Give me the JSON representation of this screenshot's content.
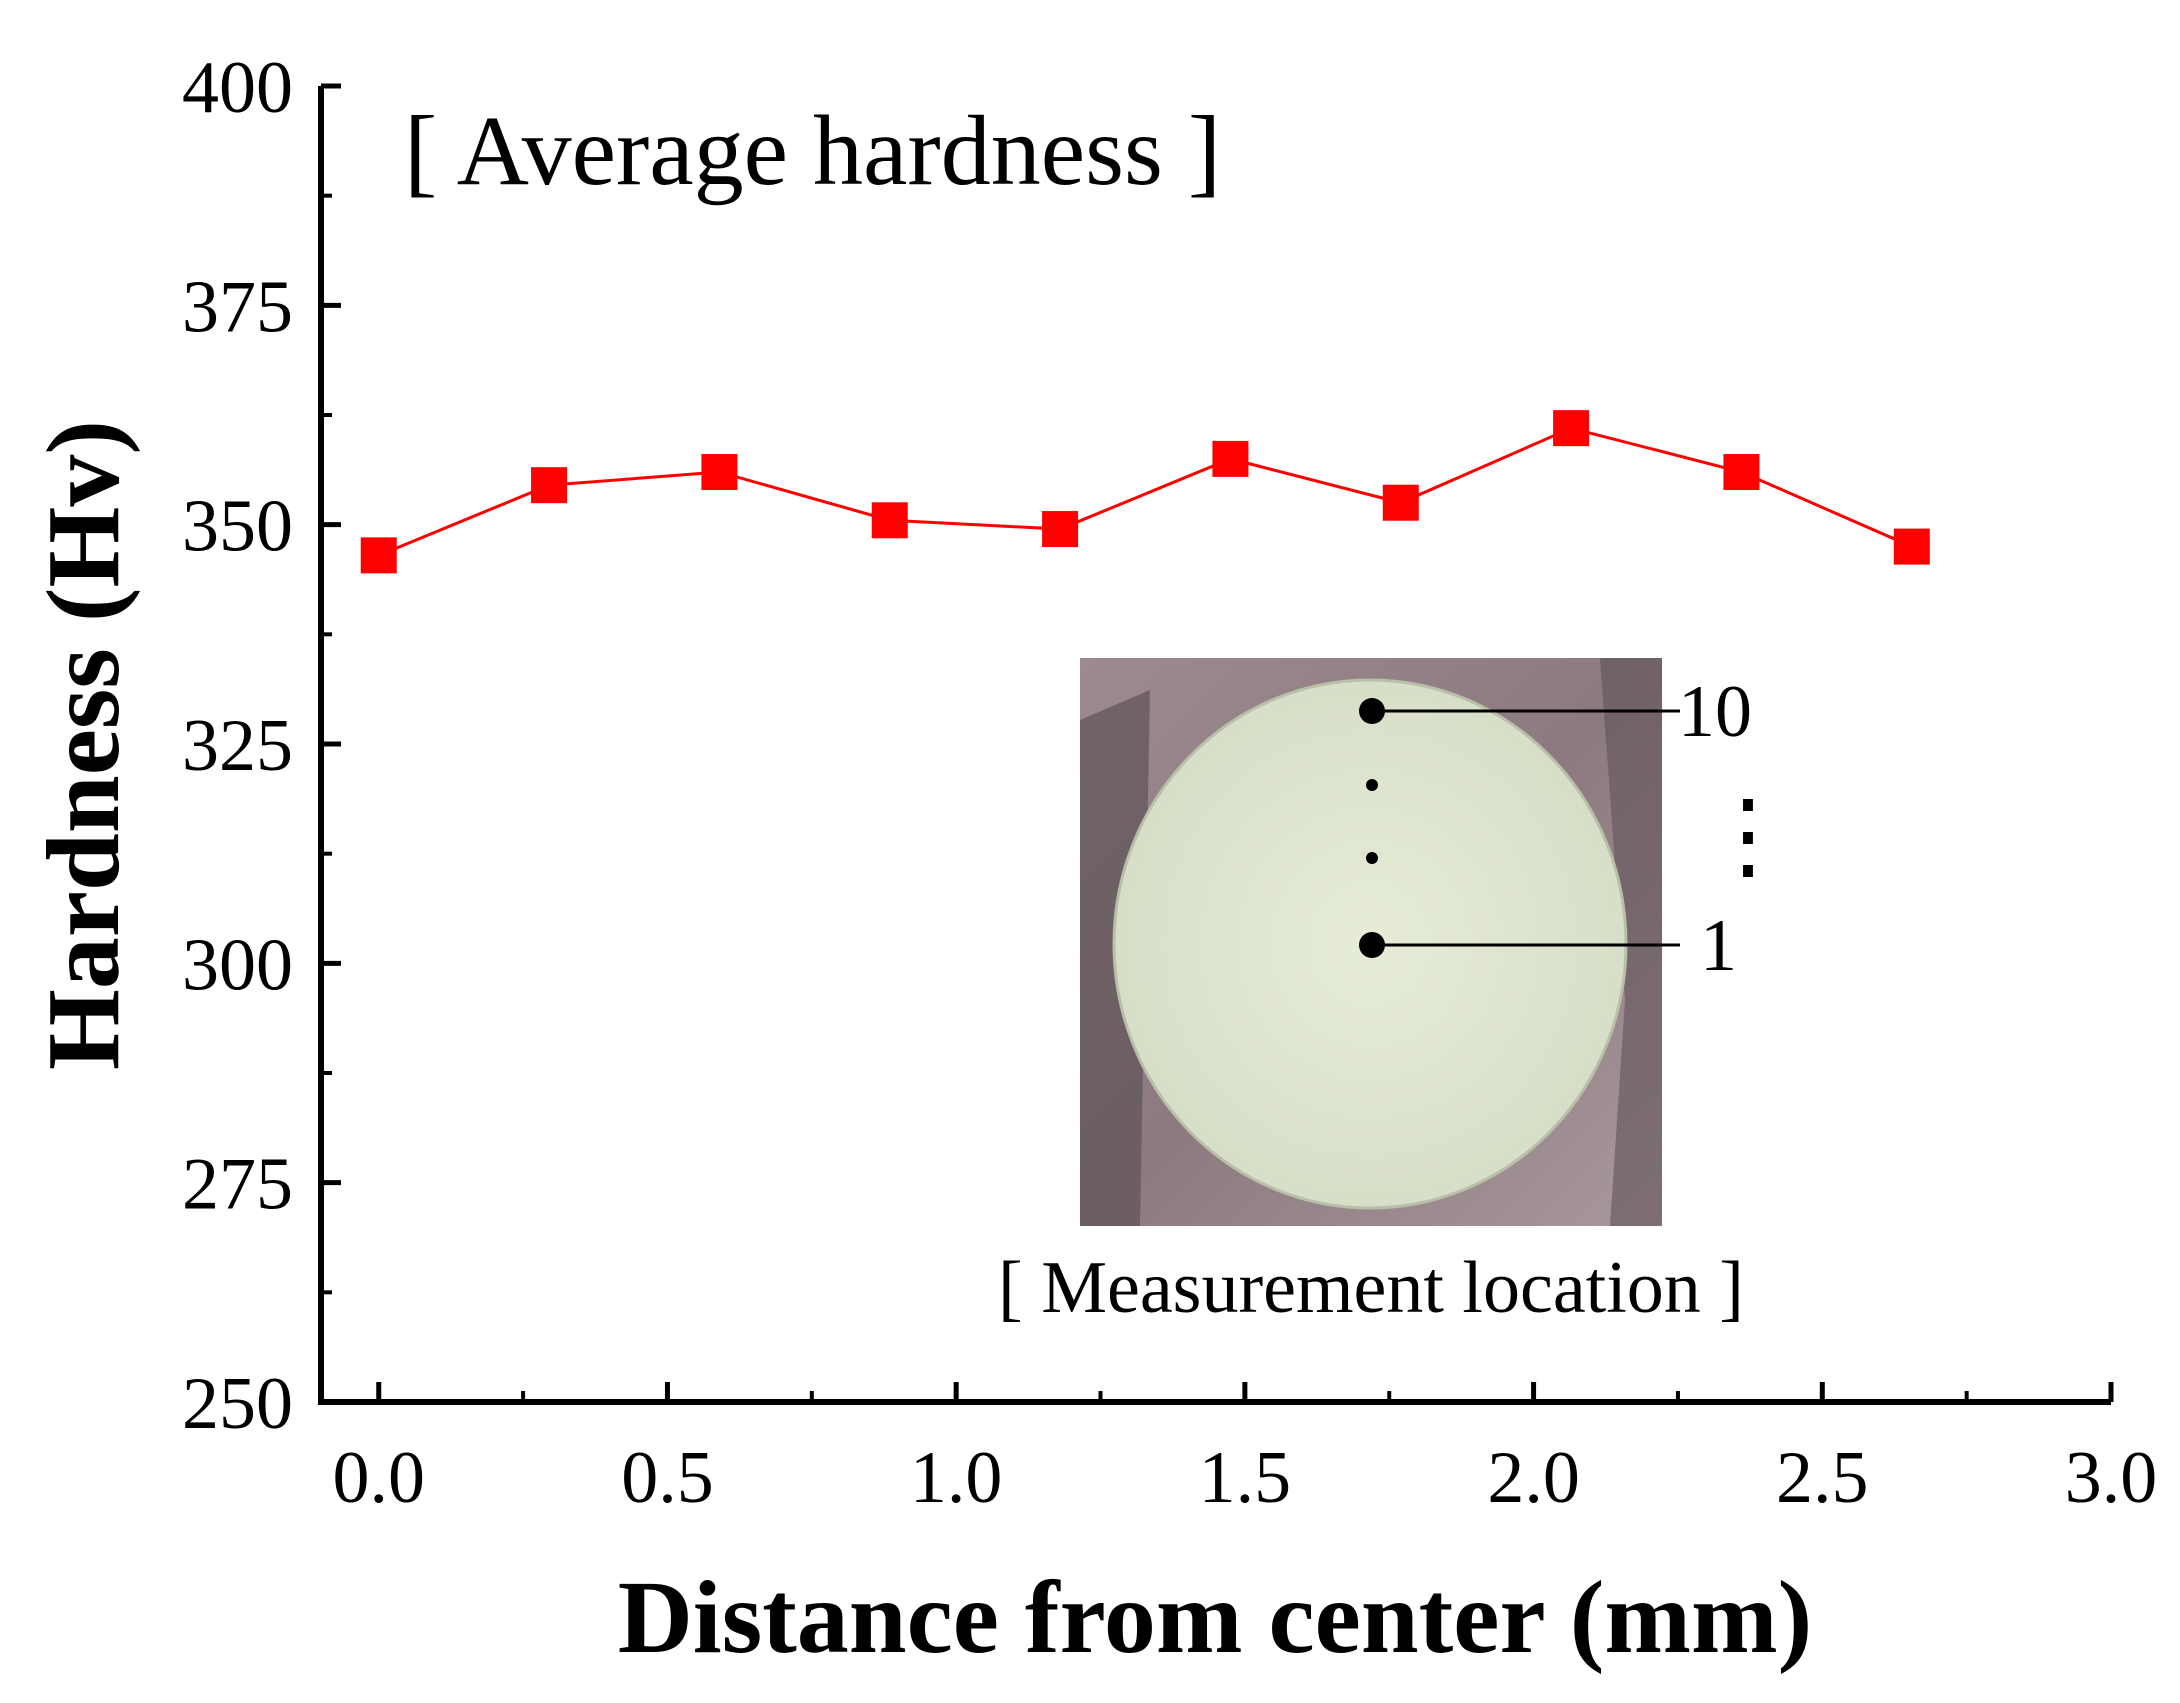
{
  "chart_data": {
    "type": "line",
    "title": "[ Average hardness ]",
    "xlabel": "Distance from center (mm)",
    "ylabel": "Hardness (Hv)",
    "xlim": [
      -0.1,
      3.0
    ],
    "ylim": [
      250,
      400
    ],
    "xticks": [
      0.0,
      0.5,
      1.0,
      1.5,
      2.0,
      2.5,
      3.0
    ],
    "xtick_labels": [
      "0.0",
      "0.5",
      "1.0",
      "1.5",
      "2.0",
      "2.5",
      "3.0"
    ],
    "yticks": [
      250,
      275,
      300,
      325,
      350,
      375,
      400
    ],
    "ytick_labels": [
      "250",
      "275",
      "300",
      "325",
      "350",
      "375",
      "400"
    ],
    "grid": false,
    "series": [
      {
        "name": "Average hardness",
        "color": "#ff0000",
        "marker": "square",
        "x": [
          0.0,
          0.295,
          0.59,
          0.885,
          1.18,
          1.475,
          1.77,
          2.065,
          2.36,
          2.655
        ],
        "y": [
          346.5,
          354.5,
          356.0,
          350.5,
          349.5,
          357.5,
          352.5,
          361.0,
          356.0,
          347.5
        ]
      }
    ],
    "inset": {
      "caption": "[ Measurement location ]",
      "label_top": "10",
      "label_bottom": "1",
      "ellipsis": "⋮"
    }
  }
}
